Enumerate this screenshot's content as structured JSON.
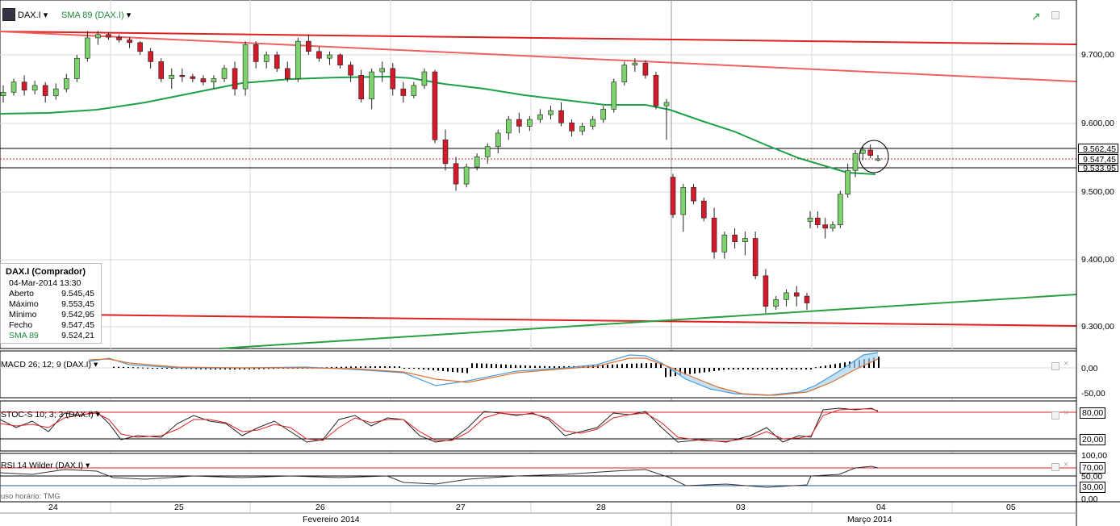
{
  "toolbar": {
    "instrument": "DAX.I",
    "overlay": "SMA 89 (DAX.I)"
  },
  "legend": {
    "title": "DAX.I (Comprador)",
    "datetime": "04-Mar-2014 13:30",
    "rows": [
      {
        "label": "Aberto",
        "value": "9.545,45"
      },
      {
        "label": "Máximo",
        "value": "9.553,45"
      },
      {
        "label": "Mínimo",
        "value": "9.542,95"
      },
      {
        "label": "Fecho",
        "value": "9.547,45"
      },
      {
        "label": "SMA 89",
        "value": "9.524,21"
      }
    ]
  },
  "price_axis": {
    "ticks": [
      "9.700,00",
      "9.600,00",
      "9.500,00",
      "9.400,00",
      "9.300,00"
    ],
    "boxes": [
      "9.562,45",
      "9.547,45",
      "9.533,95"
    ]
  },
  "indicators": {
    "macd": {
      "title": "MACD 26; 12; 9 (DAX.I)",
      "ticks": [
        "0,00",
        "-50,00"
      ]
    },
    "stoch": {
      "title": "STOC-S 10; 3; 3 (DAX.I)",
      "ticks": [
        "80,00",
        "20,00"
      ]
    },
    "rsi": {
      "title": "RSI 14 Wilder (DAX.I)",
      "ticks": [
        "100,00",
        "70,00",
        "50,00",
        "30,00",
        "0,00"
      ]
    }
  },
  "time_axis": {
    "days": [
      "24",
      "25",
      "26",
      "27",
      "28",
      "03",
      "04",
      "05"
    ],
    "months": [
      "Fevereiro 2014",
      "Março 2014"
    ],
    "timezone_note": "uso horário: TMG"
  },
  "colors": {
    "bull": "#7bd36b",
    "bear": "#d21a2a",
    "sma": "#1ea048",
    "trend_red": "#e02020",
    "trend_green": "#2aa040"
  },
  "chart_data": {
    "type": "candlestick",
    "title": "DAX.I",
    "y_range": [
      9275,
      9785
    ],
    "candles_approx": [
      [
        9640,
        9655,
        9630,
        9645
      ],
      [
        9645,
        9665,
        9640,
        9660
      ],
      [
        9660,
        9670,
        9640,
        9648
      ],
      [
        9648,
        9662,
        9642,
        9655
      ],
      [
        9655,
        9660,
        9630,
        9640
      ],
      [
        9640,
        9658,
        9634,
        9650
      ],
      [
        9650,
        9672,
        9645,
        9665
      ],
      [
        9665,
        9700,
        9660,
        9695
      ],
      [
        9695,
        9735,
        9690,
        9725
      ],
      [
        9725,
        9735,
        9715,
        9730
      ],
      [
        9730,
        9733,
        9722,
        9726
      ],
      [
        9726,
        9730,
        9718,
        9722
      ],
      [
        9722,
        9726,
        9710,
        9718
      ],
      [
        9718,
        9720,
        9700,
        9705
      ],
      [
        9705,
        9710,
        9680,
        9690
      ],
      [
        9690,
        9695,
        9660,
        9665
      ],
      [
        9665,
        9680,
        9650,
        9670
      ],
      [
        9670,
        9680,
        9660,
        9668
      ],
      [
        9668,
        9672,
        9660,
        9665
      ],
      [
        9665,
        9670,
        9655,
        9660
      ],
      [
        9660,
        9670,
        9650,
        9665
      ],
      [
        9665,
        9685,
        9660,
        9680
      ],
      [
        9680,
        9690,
        9640,
        9650
      ],
      [
        9650,
        9720,
        9640,
        9715
      ],
      [
        9715,
        9720,
        9680,
        9690
      ],
      [
        9690,
        9705,
        9680,
        9700
      ],
      [
        9700,
        9705,
        9675,
        9680
      ],
      [
        9680,
        9690,
        9660,
        9665
      ],
      [
        9665,
        9725,
        9660,
        9720
      ],
      [
        9720,
        9730,
        9700,
        9705
      ],
      [
        9705,
        9712,
        9690,
        9695
      ],
      [
        9695,
        9705,
        9685,
        9700
      ],
      [
        9700,
        9702,
        9680,
        9685
      ],
      [
        9685,
        9690,
        9660,
        9670
      ],
      [
        9670,
        9678,
        9630,
        9635
      ],
      [
        9635,
        9680,
        9620,
        9675
      ],
      [
        9675,
        9690,
        9660,
        9680
      ],
      [
        9680,
        9688,
        9640,
        9650
      ],
      [
        9650,
        9660,
        9630,
        9640
      ],
      [
        9640,
        9660,
        9636,
        9655
      ],
      [
        9655,
        9680,
        9650,
        9675
      ],
      [
        9675,
        9678,
        9570,
        9575
      ],
      [
        9575,
        9590,
        9530,
        9540
      ],
      [
        9540,
        9550,
        9500,
        9510
      ],
      [
        9510,
        9540,
        9505,
        9535
      ],
      [
        9535,
        9555,
        9530,
        9550
      ],
      [
        9550,
        9570,
        9540,
        9565
      ],
      [
        9565,
        9590,
        9555,
        9585
      ],
      [
        9585,
        9610,
        9575,
        9605
      ],
      [
        9605,
        9615,
        9585,
        9595
      ],
      [
        9595,
        9610,
        9588,
        9605
      ],
      [
        9605,
        9620,
        9600,
        9612
      ],
      [
        9612,
        9625,
        9605,
        9618
      ],
      [
        9618,
        9630,
        9595,
        9600
      ],
      [
        9600,
        9605,
        9580,
        9588
      ],
      [
        9588,
        9600,
        9582,
        9595
      ],
      [
        9595,
        9610,
        9590,
        9605
      ],
      [
        9605,
        9625,
        9600,
        9620
      ],
      [
        9620,
        9665,
        9615,
        9660
      ],
      [
        9660,
        9690,
        9655,
        9685
      ],
      [
        9685,
        9695,
        9675,
        9688
      ],
      [
        9688,
        9692,
        9665,
        9670
      ],
      [
        9670,
        9675,
        9620,
        9625
      ],
      [
        9625,
        9635,
        9575,
        9630
      ],
      [
        9520,
        9525,
        9460,
        9465
      ],
      [
        9465,
        9510,
        9440,
        9505
      ],
      [
        9505,
        9510,
        9480,
        9485
      ],
      [
        9485,
        9490,
        9455,
        9460
      ],
      [
        9460,
        9475,
        9400,
        9410
      ],
      [
        9410,
        9440,
        9400,
        9435
      ],
      [
        9435,
        9445,
        9415,
        9425
      ],
      [
        9425,
        9440,
        9405,
        9430
      ],
      [
        9430,
        9440,
        9370,
        9375
      ],
      [
        9375,
        9385,
        9320,
        9330
      ],
      [
        9330,
        9345,
        9325,
        9340
      ],
      [
        9340,
        9355,
        9330,
        9350
      ],
      [
        9350,
        9360,
        9330,
        9345
      ],
      [
        9345,
        9350,
        9325,
        9335
      ],
      [
        9455,
        9470,
        9445,
        9460
      ],
      [
        9460,
        9470,
        9445,
        9450
      ],
      [
        9450,
        9460,
        9430,
        9445
      ],
      [
        9445,
        9455,
        9440,
        9450
      ],
      [
        9450,
        9500,
        9445,
        9495
      ],
      [
        9495,
        9540,
        9490,
        9530
      ],
      [
        9530,
        9560,
        9520,
        9555
      ],
      [
        9555,
        9565,
        9545,
        9560
      ],
      [
        9560,
        9568,
        9548,
        9552
      ],
      [
        9545,
        9553,
        9543,
        9547
      ]
    ],
    "sma89_label": "SMA 89",
    "sma89_last": 9524.21
  }
}
